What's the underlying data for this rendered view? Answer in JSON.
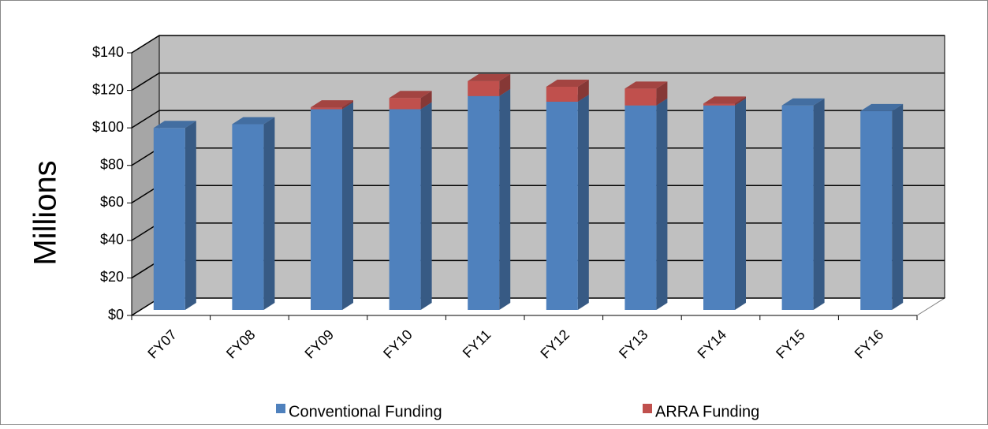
{
  "chart_data": {
    "type": "bar3d_stacked",
    "y_label": "Millions",
    "categories": [
      "FY07",
      "FY08",
      "FY09",
      "FY10",
      "FY11",
      "FY12",
      "FY13",
      "FY14",
      "FY15",
      "FY16"
    ],
    "series": [
      {
        "name": "Conventional Funding",
        "color": "#4f81bd",
        "values": [
          97,
          99,
          107,
          107,
          114,
          111,
          109,
          109,
          109,
          106
        ]
      },
      {
        "name": "ARRA Funding",
        "color": "#c0504d",
        "values": [
          0,
          0,
          1,
          6,
          8,
          8,
          9,
          1,
          0,
          0
        ]
      }
    ],
    "ylim": [
      0,
      140
    ],
    "yticks": [
      {
        "value": 0,
        "label": "$0"
      },
      {
        "value": 20,
        "label": "$20"
      },
      {
        "value": 40,
        "label": "$40"
      },
      {
        "value": 60,
        "label": "$60"
      },
      {
        "value": 80,
        "label": "$80"
      },
      {
        "value": 100,
        "label": "$100"
      },
      {
        "value": 120,
        "label": "$120"
      },
      {
        "value": 140,
        "label": "$140"
      }
    ],
    "grid": true,
    "legend": "bottom"
  }
}
